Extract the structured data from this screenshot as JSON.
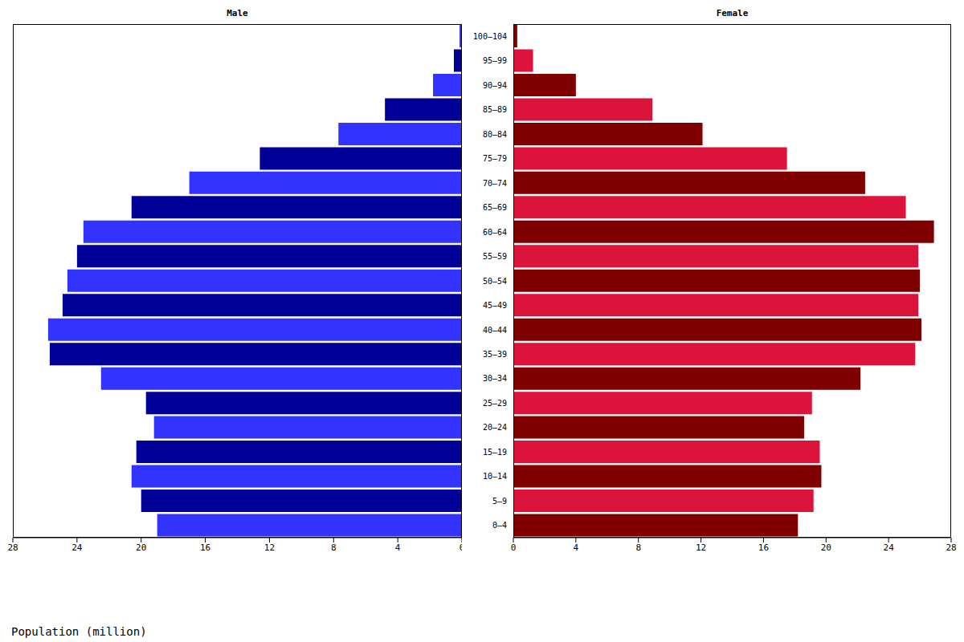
{
  "chart_data": {
    "type": "bar",
    "orientation": "horizontal",
    "xlabel": "Population (million)",
    "categories": [
      "0–4",
      "5–9",
      "10–14",
      "15–19",
      "20–24",
      "25–29",
      "30–34",
      "35–39",
      "40–44",
      "45–49",
      "50–54",
      "55–59",
      "60–64",
      "65–69",
      "70–74",
      "75–79",
      "80–84",
      "85–89",
      "90–94",
      "95–99",
      "100–104"
    ],
    "xlim": [
      0,
      28
    ],
    "xticks": [
      0,
      4,
      8,
      12,
      16,
      20,
      24,
      28
    ],
    "grid": false,
    "series": [
      {
        "name": "Male",
        "colors": [
          "#3333ff",
          "#000099",
          "#3333ff",
          "#000099",
          "#3333ff",
          "#000099",
          "#3333ff",
          "#000099",
          "#3333ff",
          "#000099",
          "#3333ff",
          "#000099",
          "#3333ff",
          "#000099",
          "#3333ff",
          "#000099",
          "#3333ff",
          "#000099",
          "#3333ff",
          "#000099",
          "#3333ff"
        ],
        "values": [
          19.0,
          20.0,
          20.6,
          20.3,
          19.2,
          19.7,
          22.5,
          25.7,
          25.8,
          24.9,
          24.6,
          24.0,
          23.6,
          20.6,
          17.0,
          12.6,
          7.7,
          4.8,
          1.8,
          0.5,
          0.15
        ]
      },
      {
        "name": "Female",
        "colors": [
          "#800000",
          "#dc143c",
          "#800000",
          "#dc143c",
          "#800000",
          "#dc143c",
          "#800000",
          "#dc143c",
          "#800000",
          "#dc143c",
          "#800000",
          "#dc143c",
          "#800000",
          "#dc143c",
          "#800000",
          "#dc143c",
          "#800000",
          "#dc143c",
          "#800000",
          "#dc143c",
          "#800000"
        ],
        "values": [
          18.2,
          19.2,
          19.7,
          19.6,
          18.6,
          19.1,
          22.2,
          25.7,
          26.1,
          25.9,
          26.0,
          25.9,
          26.9,
          25.1,
          22.5,
          17.5,
          12.1,
          8.9,
          4.0,
          1.26,
          0.25
        ]
      }
    ]
  }
}
